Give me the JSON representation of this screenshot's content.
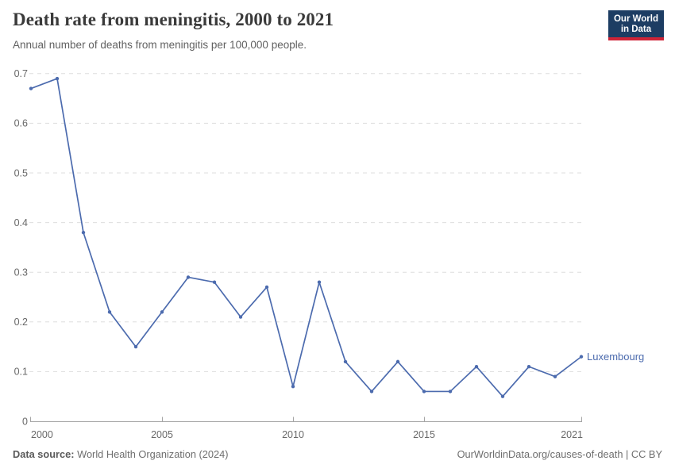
{
  "header": {
    "title": "Death rate from meningitis, 2000 to 2021",
    "subtitle": "Annual number of deaths from meningitis per 100,000 people.",
    "logo": {
      "line1": "Our World",
      "line2": "in Data",
      "bg_color": "#1d3d63",
      "accent_color": "#cf2437"
    }
  },
  "chart_data": {
    "type": "line",
    "title": "Death rate from meningitis, 2000 to 2021",
    "xlabel": "",
    "ylabel": "",
    "ylim": [
      0,
      0.7
    ],
    "yticks": [
      0,
      0.1,
      0.2,
      0.3,
      0.4,
      0.5,
      0.6,
      0.7
    ],
    "xticks": [
      2000,
      2005,
      2010,
      2015,
      2021
    ],
    "grid": "horizontal dashed",
    "legend_position": "end-of-line label",
    "grid_color": "#dedede",
    "axis_color": "#a5a5a5",
    "tick_label_color": "#696969",
    "x": [
      2000,
      2001,
      2002,
      2003,
      2004,
      2005,
      2006,
      2007,
      2008,
      2009,
      2010,
      2011,
      2012,
      2013,
      2014,
      2015,
      2016,
      2017,
      2018,
      2019,
      2020,
      2021
    ],
    "series": [
      {
        "name": "Luxembourg",
        "color": "#4c6bae",
        "values": [
          0.67,
          0.69,
          0.38,
          0.22,
          0.15,
          0.22,
          0.29,
          0.28,
          0.21,
          0.27,
          0.07,
          0.28,
          0.12,
          0.06,
          0.12,
          0.06,
          0.06,
          0.11,
          0.05,
          0.11,
          0.09,
          0.13
        ]
      }
    ]
  },
  "footer": {
    "source_label": "Data source:",
    "source": "World Health Organization (2024)",
    "credit": "OurWorldinData.org/causes-of-death | CC BY"
  }
}
